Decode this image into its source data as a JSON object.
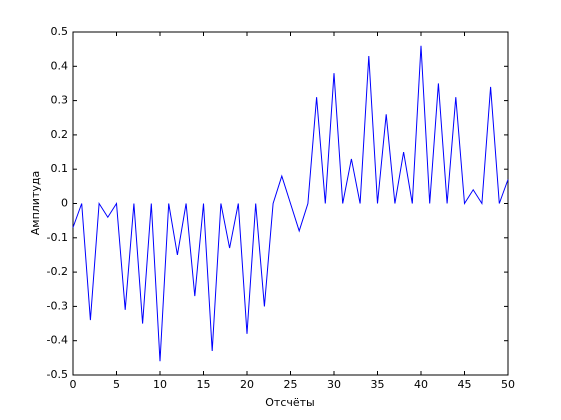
{
  "chart_data": {
    "type": "line",
    "xlabel": "Отсчёты",
    "ylabel": "Амплитуда",
    "x": [
      0,
      1,
      2,
      3,
      4,
      5,
      6,
      7,
      8,
      9,
      10,
      11,
      12,
      13,
      14,
      15,
      16,
      17,
      18,
      19,
      20,
      21,
      22,
      23,
      24,
      25,
      26,
      27,
      28,
      29,
      30,
      31,
      32,
      33,
      34,
      35,
      36,
      37,
      38,
      39,
      40,
      41,
      42,
      43,
      44,
      45,
      46,
      47,
      48,
      49,
      50
    ],
    "series": [
      {
        "color": "#0000ff",
        "values": [
          -0.07,
          0,
          -0.34,
          0,
          -0.04,
          0,
          -0.31,
          0,
          -0.35,
          0,
          -0.46,
          0,
          -0.15,
          0,
          -0.27,
          0,
          -0.43,
          0,
          -0.13,
          0,
          -0.38,
          0,
          -0.3,
          0,
          0.08,
          0,
          -0.08,
          0,
          0.31,
          0,
          0.38,
          0,
          0.13,
          0,
          0.43,
          0,
          0.26,
          0,
          0.15,
          0,
          0.46,
          0,
          0.35,
          0,
          0.31,
          0,
          0.04,
          0,
          0.34,
          0,
          0.07
        ]
      }
    ],
    "xlim": [
      0,
      50
    ],
    "xticks": [
      0,
      5,
      10,
      15,
      20,
      25,
      30,
      35,
      40,
      45,
      50
    ],
    "ylim": [
      -0.5,
      0.5
    ],
    "yticks": [
      -0.5,
      -0.4,
      -0.3,
      -0.2,
      -0.1,
      0,
      0.1,
      0.2,
      0.3,
      0.4,
      0.5
    ],
    "grid": false
  }
}
